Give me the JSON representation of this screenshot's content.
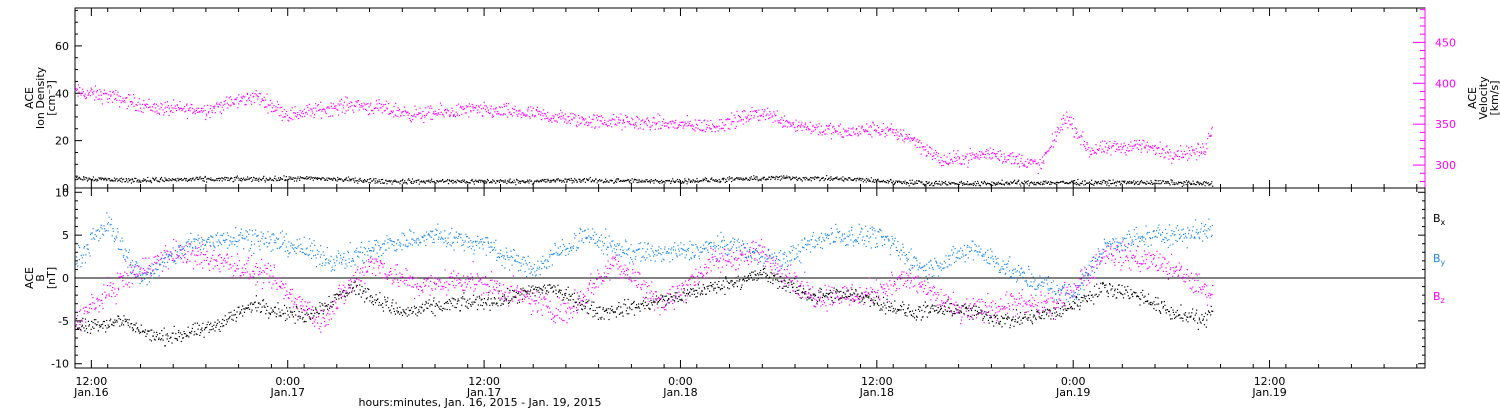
{
  "chart_data": [
    {
      "type": "scatter",
      "panel": "plasma",
      "xlabel": "hours:minutes, Jan. 16, 2015 - Jan. 19, 2015",
      "x_range": [
        "2015-01-16 11:00",
        "2015-01-19 21:30"
      ],
      "x_ticks": [
        {
          "t": "2015-01-16 12:00",
          "time": "12:00",
          "date": "Jan.16"
        },
        {
          "t": "2015-01-17 00:00",
          "time": "0:00",
          "date": "Jan.17"
        },
        {
          "t": "2015-01-17 12:00",
          "time": "12:00",
          "date": "Jan.17"
        },
        {
          "t": "2015-01-18 00:00",
          "time": "0:00",
          "date": "Jan.18"
        },
        {
          "t": "2015-01-18 12:00",
          "time": "12:00",
          "date": "Jan.18"
        },
        {
          "t": "2015-01-19 00:00",
          "time": "0:00",
          "date": "Jan.19"
        },
        {
          "t": "2015-01-19 12:00",
          "time": "12:00",
          "date": "Jan.19"
        }
      ],
      "left_axis": {
        "label_lines": [
          "ACE",
          "Ion Density",
          "[cm⁻³]"
        ],
        "ylim": [
          0,
          76
        ],
        "ticks": [
          0,
          20,
          40,
          60
        ],
        "color": "#000000"
      },
      "right_axis": {
        "label_lines": [
          "ACE",
          "Velocity",
          "[km/s]"
        ],
        "ylim": [
          272,
          492
        ],
        "ticks": [
          300,
          350,
          400,
          450
        ],
        "color": "#ff00ff"
      },
      "series": [
        {
          "axis": "left",
          "color": "#000000",
          "points": [
            [
              "2015-01-16 11:00",
              4.5
            ],
            [
              "2015-01-16 14:00",
              3.5
            ],
            [
              "2015-01-16 18:00",
              3.8
            ],
            [
              "2015-01-16 22:00",
              4.0
            ],
            [
              "2015-01-17 02:00",
              4.2
            ],
            [
              "2015-01-17 06:00",
              3.0
            ],
            [
              "2015-01-17 10:00",
              3.0
            ],
            [
              "2015-01-17 14:00",
              3.0
            ],
            [
              "2015-01-17 18:00",
              3.5
            ],
            [
              "2015-01-17 22:00",
              3.0
            ],
            [
              "2015-01-18 02:00",
              3.5
            ],
            [
              "2015-01-18 06:00",
              4.5
            ],
            [
              "2015-01-18 10:00",
              4.0
            ],
            [
              "2015-01-18 14:00",
              2.5
            ],
            [
              "2015-01-18 18:00",
              2.0
            ],
            [
              "2015-01-18 22:00",
              2.5
            ],
            [
              "2015-01-19 02:00",
              2.5
            ],
            [
              "2015-01-19 06:00",
              2.5
            ],
            [
              "2015-01-19 08:30",
              2.0
            ]
          ]
        },
        {
          "axis": "right",
          "color": "#ff00ff",
          "points": [
            [
              "2015-01-16 11:00",
              390
            ],
            [
              "2015-01-16 13:00",
              385
            ],
            [
              "2015-01-16 16:00",
              370
            ],
            [
              "2015-01-16 19:00",
              368
            ],
            [
              "2015-01-16 22:00",
              385
            ],
            [
              "2015-01-17 00:00",
              362
            ],
            [
              "2015-01-17 04:00",
              375
            ],
            [
              "2015-01-17 08:00",
              362
            ],
            [
              "2015-01-17 11:00",
              368
            ],
            [
              "2015-01-17 14:00",
              365
            ],
            [
              "2015-01-17 18:00",
              355
            ],
            [
              "2015-01-17 22:00",
              352
            ],
            [
              "2015-01-18 02:00",
              348
            ],
            [
              "2015-01-18 05:00",
              365
            ],
            [
              "2015-01-18 07:00",
              350
            ],
            [
              "2015-01-18 10:00",
              340
            ],
            [
              "2015-01-18 12:00",
              345
            ],
            [
              "2015-01-18 14:00",
              335
            ],
            [
              "2015-01-18 16:00",
              305
            ],
            [
              "2015-01-18 19:00",
              315
            ],
            [
              "2015-01-18 22:00",
              300
            ],
            [
              "2015-01-18 23:30",
              360
            ],
            [
              "2015-01-19 01:00",
              318
            ],
            [
              "2015-01-19 04:00",
              325
            ],
            [
              "2015-01-19 06:00",
              315
            ],
            [
              "2015-01-19 08:00",
              318
            ],
            [
              "2015-01-19 08:30",
              350
            ]
          ]
        }
      ]
    },
    {
      "type": "scatter",
      "panel": "magnetic-field",
      "x_range": [
        "2015-01-16 11:00",
        "2015-01-19 21:30"
      ],
      "left_axis": {
        "label_lines": [
          "ACE",
          "B",
          "[nT]"
        ],
        "ylim": [
          -10.5,
          10.5
        ],
        "ticks": [
          -10,
          -5,
          0,
          5,
          10
        ]
      },
      "zero_line": true,
      "legend_placement": "right",
      "series": [
        {
          "name": "Bx",
          "name_base": "B",
          "name_sub": "x",
          "color": "#000000",
          "points": [
            [
              "2015-01-16 11:00",
              -5.5
            ],
            [
              "2015-01-16 14:00",
              -5.0
            ],
            [
              "2015-01-16 16:00",
              -7.0
            ],
            [
              "2015-01-16 19:00",
              -6.0
            ],
            [
              "2015-01-16 22:00",
              -3.0
            ],
            [
              "2015-01-17 01:00",
              -4.5
            ],
            [
              "2015-01-17 04:00",
              -1.0
            ],
            [
              "2015-01-17 07:00",
              -4.0
            ],
            [
              "2015-01-17 10:00",
              -3.0
            ],
            [
              "2015-01-17 13:00",
              -2.5
            ],
            [
              "2015-01-17 16:00",
              -1.0
            ],
            [
              "2015-01-17 19:00",
              -4.0
            ],
            [
              "2015-01-17 22:00",
              -3.0
            ],
            [
              "2015-01-18 02:00",
              -1.0
            ],
            [
              "2015-01-18 05:00",
              0.5
            ],
            [
              "2015-01-18 08:00",
              -2.0
            ],
            [
              "2015-01-18 11:00",
              -2.0
            ],
            [
              "2015-01-18 14:00",
              -4.0
            ],
            [
              "2015-01-18 17:00",
              -3.5
            ],
            [
              "2015-01-18 20:00",
              -5.0
            ],
            [
              "2015-01-18 23:00",
              -4.0
            ],
            [
              "2015-01-19 02:00",
              -1.0
            ],
            [
              "2015-01-19 04:00",
              -2.0
            ],
            [
              "2015-01-19 06:00",
              -4.0
            ],
            [
              "2015-01-19 08:00",
              -5.0
            ],
            [
              "2015-01-19 08:30",
              -3.0
            ]
          ]
        },
        {
          "name": "By",
          "name_base": "B",
          "name_sub": "y",
          "color": "#1e88e5",
          "points": [
            [
              "2015-01-16 11:00",
              2.0
            ],
            [
              "2015-01-16 13:00",
              6.5
            ],
            [
              "2015-01-16 15:00",
              0.0
            ],
            [
              "2015-01-16 18:00",
              4.0
            ],
            [
              "2015-01-16 21:00",
              5.0
            ],
            [
              "2015-01-17 00:00",
              4.0
            ],
            [
              "2015-01-17 03:00",
              2.0
            ],
            [
              "2015-01-17 06:00",
              4.0
            ],
            [
              "2015-01-17 09:00",
              5.0
            ],
            [
              "2015-01-17 12:00",
              4.0
            ],
            [
              "2015-01-17 15:00",
              1.0
            ],
            [
              "2015-01-17 18:00",
              5.0
            ],
            [
              "2015-01-17 21:00",
              3.0
            ],
            [
              "2015-01-18 00:00",
              3.0
            ],
            [
              "2015-01-18 03:00",
              4.0
            ],
            [
              "2015-01-18 06:00",
              2.0
            ],
            [
              "2015-01-18 09:00",
              5.0
            ],
            [
              "2015-01-18 12:00",
              5.0
            ],
            [
              "2015-01-18 15:00",
              1.0
            ],
            [
              "2015-01-18 18:00",
              3.5
            ],
            [
              "2015-01-18 21:00",
              0.0
            ],
            [
              "2015-01-19 00:00",
              -2.0
            ],
            [
              "2015-01-19 02:00",
              4.0
            ],
            [
              "2015-01-19 05:00",
              5.0
            ],
            [
              "2015-01-19 08:30",
              5.5
            ]
          ]
        },
        {
          "name": "Bz",
          "name_base": "B",
          "name_sub": "z",
          "color": "#ff00ff",
          "points": [
            [
              "2015-01-16 11:00",
              -5.0
            ],
            [
              "2015-01-16 14:00",
              0.0
            ],
            [
              "2015-01-16 17:00",
              3.0
            ],
            [
              "2015-01-16 20:00",
              2.0
            ],
            [
              "2015-01-16 23:00",
              0.0
            ],
            [
              "2015-01-17 02:00",
              -5.0
            ],
            [
              "2015-01-17 05:00",
              2.0
            ],
            [
              "2015-01-17 08:00",
              -1.0
            ],
            [
              "2015-01-17 11:00",
              0.0
            ],
            [
              "2015-01-17 14:00",
              -2.0
            ],
            [
              "2015-01-17 17:00",
              -4.0
            ],
            [
              "2015-01-17 20:00",
              2.0
            ],
            [
              "2015-01-17 23:00",
              -3.0
            ],
            [
              "2015-01-18 02:00",
              2.0
            ],
            [
              "2015-01-18 05:00",
              3.0
            ],
            [
              "2015-01-18 08:00",
              -2.0
            ],
            [
              "2015-01-18 11:00",
              -2.0
            ],
            [
              "2015-01-18 14:00",
              0.0
            ],
            [
              "2015-01-18 17:00",
              -4.0
            ],
            [
              "2015-01-18 20:00",
              -3.0
            ],
            [
              "2015-01-18 23:00",
              -3.0
            ],
            [
              "2015-01-19 02:00",
              3.0
            ],
            [
              "2015-01-19 05:00",
              2.0
            ],
            [
              "2015-01-19 07:00",
              0.0
            ],
            [
              "2015-01-19 08:30",
              -2.0
            ]
          ]
        }
      ]
    }
  ]
}
